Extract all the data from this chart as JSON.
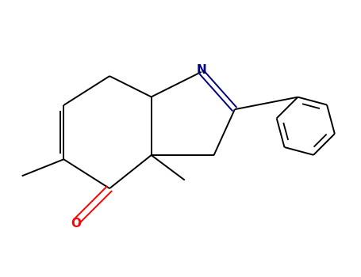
{
  "background_color": "#ffffff",
  "bond_color": "#000000",
  "nitrogen_color": "#000080",
  "oxygen_color": "#ff0000",
  "bond_width": 1.4,
  "figsize": [
    4.55,
    3.5
  ],
  "dpi": 100,
  "font_size": 10
}
